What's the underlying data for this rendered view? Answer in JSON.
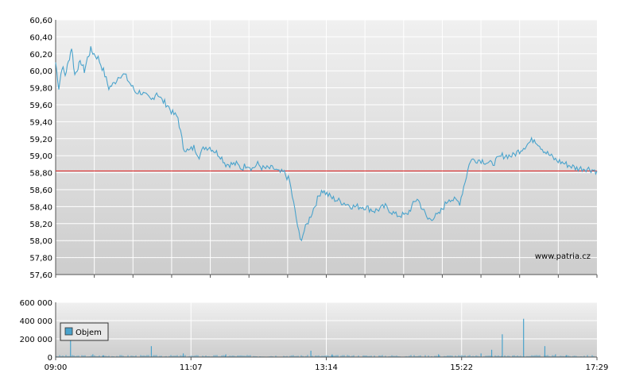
{
  "chart_data": [
    {
      "type": "line",
      "name": "price-panel",
      "ylim": [
        57.6,
        60.6
      ],
      "y_ticks": [
        "60,60",
        "60,40",
        "60,20",
        "60,00",
        "59,80",
        "59,60",
        "59,40",
        "59,20",
        "59,00",
        "58,80",
        "58,60",
        "58,40",
        "58,20",
        "58,00",
        "57,80",
        "57,60"
      ],
      "reference_line": 58.82,
      "reference_color": "#e03030",
      "line_color": "#4aa3cc",
      "grid": true,
      "watermark": "www.patria.cz",
      "x_ticks": [
        "09:00",
        "11:07",
        "13:14",
        "15:22",
        "17:29"
      ],
      "xlim_minutes": [
        540,
        1049
      ],
      "series": [
        {
          "x": [
            540,
            543,
            546,
            549,
            552,
            555,
            558,
            561,
            564,
            567,
            570,
            573,
            576,
            580,
            585,
            590,
            595,
            600,
            605,
            610,
            615,
            620,
            625,
            630,
            635,
            640,
            645,
            650,
            655,
            660,
            665,
            670,
            675,
            680,
            685,
            690,
            695,
            700,
            705,
            710,
            715,
            720,
            725,
            730,
            735,
            740,
            745,
            750,
            755,
            760,
            770,
            780,
            790,
            800,
            810,
            820,
            830,
            840,
            850,
            860,
            870,
            880,
            890,
            900,
            910,
            920,
            930,
            940,
            950,
            960,
            970,
            980,
            990,
            1000,
            1010,
            1020,
            1030,
            1040,
            1049
          ],
          "y": [
            60.1,
            59.8,
            60.05,
            59.95,
            60.1,
            60.28,
            59.95,
            60.05,
            60.1,
            60.0,
            60.15,
            60.25,
            60.2,
            60.15,
            60.0,
            59.8,
            59.85,
            59.95,
            59.95,
            59.85,
            59.75,
            59.75,
            59.7,
            59.65,
            59.75,
            59.65,
            59.6,
            59.5,
            59.45,
            59.1,
            59.05,
            59.1,
            59.0,
            59.1,
            59.1,
            59.05,
            59.0,
            58.9,
            58.9,
            58.9,
            58.85,
            58.9,
            58.85,
            58.9,
            58.85,
            58.85,
            58.85,
            58.8,
            58.8,
            58.7,
            58.0,
            58.3,
            58.6,
            58.5,
            58.45,
            58.4,
            58.4,
            58.35,
            58.4,
            58.3,
            58.3,
            58.5,
            58.25,
            58.3,
            58.5,
            58.45,
            58.95,
            58.95,
            58.9,
            59.0,
            59.0,
            59.1,
            59.2,
            59.05,
            58.95,
            58.9,
            58.85,
            58.85,
            58.82
          ]
        }
      ]
    },
    {
      "type": "bar",
      "name": "volume-panel",
      "ylim": [
        0,
        600000
      ],
      "y_ticks": [
        "600 000",
        "400 000",
        "200 000",
        "0"
      ],
      "bar_color": "#4aa3cc",
      "legend": "Objem",
      "legend_position": "top-left",
      "grid": true,
      "x_ticks": [
        "09:00",
        "11:07",
        "13:14",
        "15:22",
        "17:29"
      ],
      "spikes": {
        "x": [
          554,
          575,
          585,
          630,
          660,
          700,
          780,
          800,
          900,
          940,
          950,
          960,
          980,
          1000,
          1010,
          1020
        ],
        "y": [
          180000,
          30000,
          20000,
          120000,
          40000,
          30000,
          70000,
          30000,
          30000,
          40000,
          80000,
          250000,
          420000,
          120000,
          30000,
          20000
        ]
      },
      "baseline_volume": 15000
    }
  ]
}
